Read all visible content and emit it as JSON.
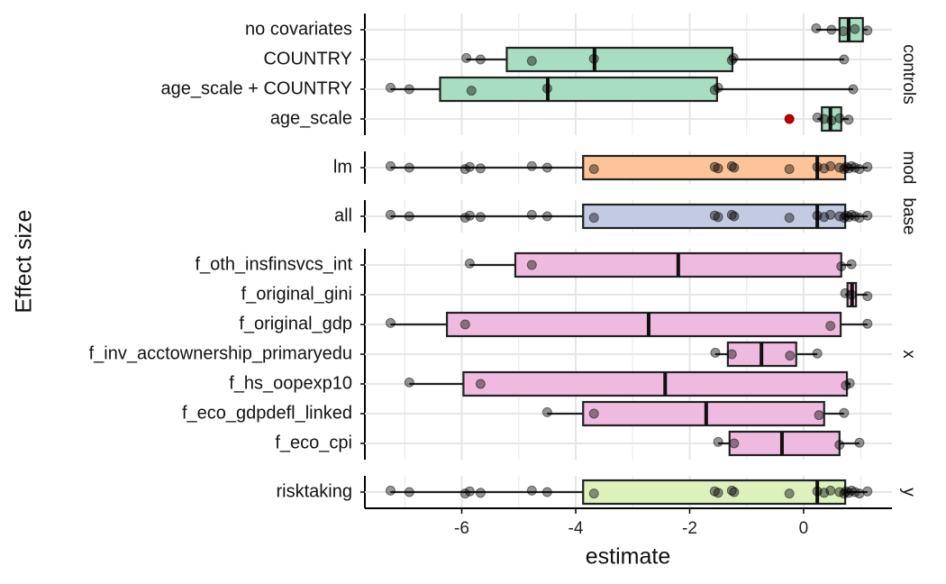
{
  "chart_data": {
    "type": "boxplot",
    "x_label": "estimate",
    "y_label": "Effect size",
    "xlim": [
      -7.7,
      1.55
    ],
    "xticks": [
      -6,
      -4,
      -2,
      0
    ],
    "xminor": [
      -7,
      -5,
      -3,
      -1,
      1
    ],
    "grid": true,
    "point_color": "#000000",
    "outlier_color": "#b30000",
    "panels": [
      {
        "strip": "controls",
        "color": "#a8ddc1",
        "rows": [
          {
            "label": "no covariates",
            "whisker_low": 0.22,
            "q1": 0.63,
            "median": 0.79,
            "q3": 1.04,
            "whisker_high": 1.12,
            "points": [
              0.22,
              0.49,
              0.7,
              0.9,
              1.12
            ],
            "outliers": []
          },
          {
            "label": "COUNTRY",
            "whisker_low": -5.92,
            "q1": -5.21,
            "median": -3.67,
            "q3": -1.25,
            "whisker_high": 0.71,
            "points": [
              -5.92,
              -5.67,
              -4.77,
              -3.68,
              -1.26,
              -1.23,
              0.71
            ],
            "outliers": []
          },
          {
            "label": "age_scale + COUNTRY",
            "whisker_low": -7.25,
            "q1": -6.38,
            "median": -4.49,
            "q3": -1.52,
            "whisker_high": 0.87,
            "points": [
              -7.25,
              -6.92,
              -5.83,
              -4.5,
              -1.56,
              -1.5,
              0.87
            ],
            "outliers": []
          },
          {
            "label": "age_scale",
            "whisker_low": 0.24,
            "q1": 0.32,
            "median": 0.47,
            "q3": 0.66,
            "whisker_high": 0.79,
            "points": [
              0.24,
              0.36,
              0.49,
              0.63,
              0.79
            ],
            "outliers": [
              -0.25
            ]
          }
        ]
      },
      {
        "strip": "mod",
        "color": "#fdc49a",
        "rows": [
          {
            "label": "lm",
            "whisker_low": -7.25,
            "q1": -3.87,
            "median": 0.24,
            "q3": 0.73,
            "whisker_high": 1.12,
            "points": [
              -7.25,
              -6.92,
              -5.94,
              -5.86,
              -5.67,
              -4.77,
              -4.5,
              -3.68,
              -1.56,
              -1.5,
              -1.26,
              -1.22,
              -0.25,
              0.24,
              0.36,
              0.47,
              0.63,
              0.71,
              0.74,
              0.79,
              0.84,
              0.9,
              0.98,
              1.12
            ],
            "outliers": []
          }
        ]
      },
      {
        "strip": "base",
        "color": "#c3cbe3",
        "rows": [
          {
            "label": "all",
            "whisker_low": -7.25,
            "q1": -3.87,
            "median": 0.24,
            "q3": 0.73,
            "whisker_high": 1.12,
            "points": [
              -7.25,
              -6.92,
              -5.94,
              -5.86,
              -5.67,
              -4.77,
              -4.5,
              -3.68,
              -1.56,
              -1.5,
              -1.26,
              -1.22,
              -0.25,
              0.24,
              0.36,
              0.47,
              0.63,
              0.71,
              0.74,
              0.79,
              0.84,
              0.9,
              0.98,
              1.12
            ],
            "outliers": []
          }
        ]
      },
      {
        "strip": "x",
        "color": "#efbadf",
        "rows": [
          {
            "label": "f_oth_insfinsvcs_int",
            "whisker_low": -5.86,
            "q1": -5.06,
            "median": -2.2,
            "q3": 0.66,
            "whisker_high": 0.84,
            "points": [
              -5.86,
              -4.77,
              0.66,
              0.84
            ],
            "outliers": []
          },
          {
            "label": "f_original_gini",
            "whisker_low": 0.73,
            "q1": 0.77,
            "median": 0.85,
            "q3": 0.92,
            "whisker_high": 1.12,
            "points": [
              0.73,
              0.84,
              1.12
            ],
            "outliers": []
          },
          {
            "label": "f_original_gdp",
            "whisker_low": -7.25,
            "q1": -6.26,
            "median": -2.72,
            "q3": 0.65,
            "whisker_high": 1.12,
            "points": [
              -7.25,
              -5.94,
              0.47,
              1.12
            ],
            "outliers": []
          },
          {
            "label": "f_inv_acctownership_primaryedu",
            "whisker_low": -1.55,
            "q1": -1.33,
            "median": -0.74,
            "q3": -0.13,
            "whisker_high": 0.24,
            "points": [
              -1.55,
              -1.26,
              -0.24,
              0.24
            ],
            "outliers": []
          },
          {
            "label": "f_hs_oopexp10",
            "whisker_low": -6.92,
            "q1": -5.97,
            "median": -2.43,
            "q3": 0.76,
            "whisker_high": 0.82,
            "points": [
              -6.92,
              -5.67,
              0.74,
              0.81
            ],
            "outliers": []
          },
          {
            "label": "f_eco_gdpdefl_linked",
            "whisker_low": -4.5,
            "q1": -3.87,
            "median": -1.71,
            "q3": 0.36,
            "whisker_high": 0.71,
            "points": [
              -4.5,
              -3.68,
              0.27,
              0.71
            ],
            "outliers": []
          },
          {
            "label": "f_eco_cpi",
            "whisker_low": -1.5,
            "q1": -1.3,
            "median": -0.38,
            "q3": 0.63,
            "whisker_high": 0.98,
            "points": [
              -1.5,
              -1.22,
              0.63,
              0.98
            ],
            "outliers": []
          }
        ]
      },
      {
        "strip": "y",
        "color": "#ddf1bd",
        "rows": [
          {
            "label": "risktaking",
            "whisker_low": -7.25,
            "q1": -3.87,
            "median": 0.24,
            "q3": 0.73,
            "whisker_high": 1.12,
            "points": [
              -7.25,
              -6.92,
              -5.94,
              -5.86,
              -5.67,
              -4.77,
              -4.5,
              -3.68,
              -1.56,
              -1.5,
              -1.26,
              -1.22,
              -0.25,
              0.24,
              0.36,
              0.47,
              0.63,
              0.71,
              0.74,
              0.79,
              0.84,
              0.9,
              0.98,
              1.12
            ],
            "outliers": []
          }
        ]
      }
    ]
  }
}
